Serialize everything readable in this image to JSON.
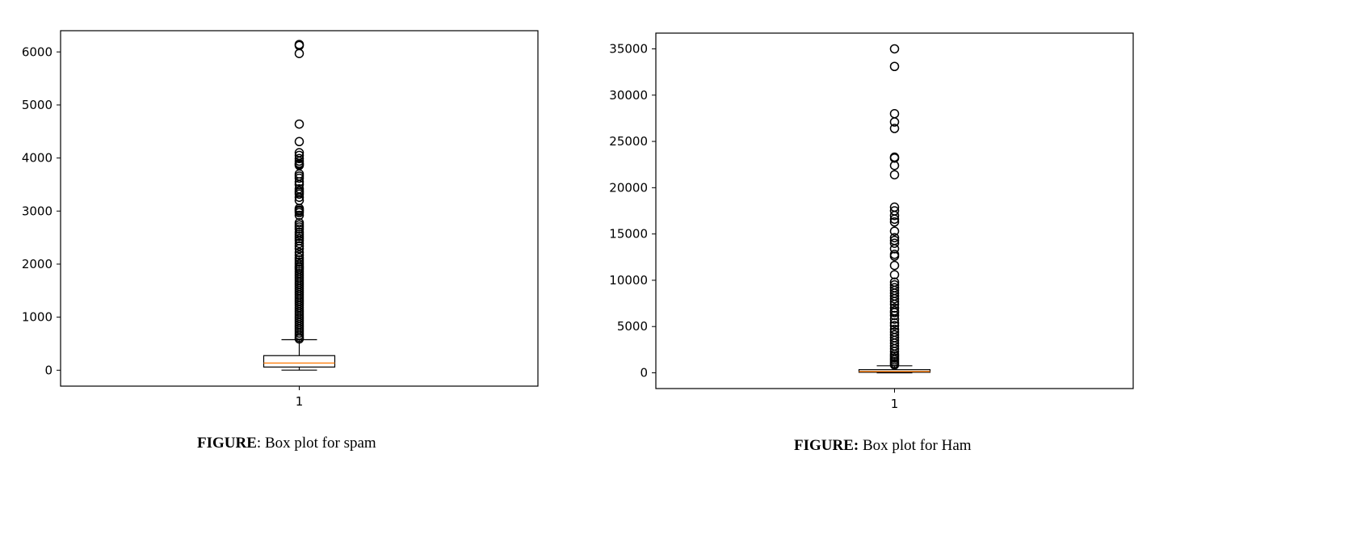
{
  "chart_data": [
    {
      "type": "box",
      "title": "",
      "xlabel": "",
      "ylabel": "",
      "ylim": [
        -300,
        6400
      ],
      "yticks": [
        0,
        1000,
        2000,
        3000,
        4000,
        5000,
        6000
      ],
      "yticklabels": [
        "0",
        "1000",
        "2000",
        "3000",
        "4000",
        "5000",
        "6000"
      ],
      "xticklabels": [
        "1"
      ],
      "grid": false,
      "box": {
        "whisker_low": 2,
        "q1": 60,
        "median": 135,
        "q3": 275,
        "whisker_high": 575
      },
      "median_color": "#ff7f0e",
      "outliers": [
        6140,
        6120,
        5970,
        4640,
        4310,
        4100,
        4050,
        3990,
        3940,
        3900,
        3880,
        3860,
        3700,
        3660,
        3620,
        3550,
        3500,
        3420,
        3380,
        3350,
        3320,
        3260,
        3200,
        3050,
        3020,
        3000,
        2970,
        2920,
        2780,
        2740,
        2700,
        2660,
        2600,
        2560,
        2520,
        2480,
        2440,
        2390,
        2340,
        2290,
        2220,
        2170,
        2120,
        2080,
        2040,
        2000,
        1960,
        1930,
        1900,
        1860,
        1820,
        1780,
        1740,
        1700,
        1660,
        1620,
        1580,
        1540,
        1500,
        1460,
        1420,
        1380,
        1340,
        1300,
        1260,
        1220,
        1180,
        1140,
        1100,
        1060,
        1020,
        980,
        940,
        900,
        860,
        820,
        780,
        740,
        700,
        660,
        620,
        590
      ]
    },
    {
      "type": "box",
      "title": "",
      "xlabel": "",
      "ylabel": "",
      "ylim": [
        -1700,
        36700
      ],
      "yticks": [
        0,
        5000,
        10000,
        15000,
        20000,
        25000,
        30000,
        35000
      ],
      "yticklabels": [
        "0",
        "5000",
        "10000",
        "15000",
        "20000",
        "25000",
        "30000",
        "35000"
      ],
      "xticklabels": [
        "1"
      ],
      "grid": false,
      "box": {
        "whisker_low": 0,
        "q1": 60,
        "median": 150,
        "q3": 340,
        "whisker_high": 760
      },
      "median_color": "#ff7f0e",
      "outliers": [
        35000,
        33100,
        28000,
        27100,
        26400,
        23300,
        23200,
        22400,
        21400,
        17900,
        17500,
        17000,
        16600,
        16300,
        15300,
        14600,
        14300,
        14000,
        13400,
        12800,
        12600,
        11600,
        10600,
        9800,
        9500,
        9200,
        8900,
        8600,
        8300,
        8000,
        7700,
        7400,
        7000,
        6700,
        6500,
        6200,
        5800,
        5400,
        5100,
        4700,
        4400,
        4100,
        3800,
        3500,
        3200,
        2900,
        2600,
        2300,
        2000,
        1800,
        1600,
        1400,
        1200,
        1000,
        850
      ]
    }
  ],
  "captions": [
    {
      "label": "FIGURE",
      "sep": ": ",
      "text": "Box plot for spam"
    },
    {
      "label": "FIGURE:",
      "sep": " ",
      "text": "Box plot for Ham"
    }
  ]
}
